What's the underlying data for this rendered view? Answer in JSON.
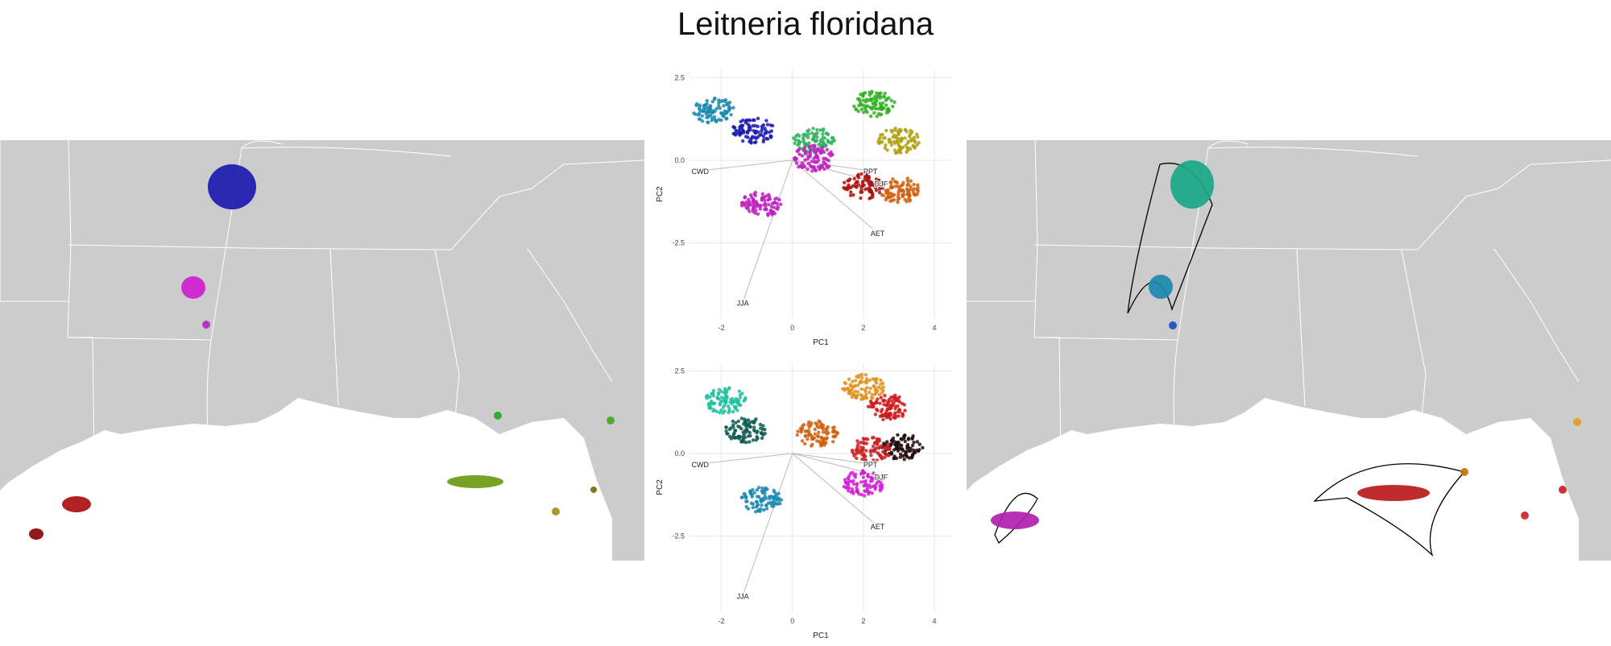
{
  "title": "Leitneria floridana",
  "colors": {
    "land": "#cccccc",
    "state_border": "#ffffff",
    "grid": "#e8e8e8",
    "loading_line": "#bbbbbb",
    "hull_line": "#000000"
  },
  "maps": [
    {
      "name": "left-map",
      "patches": [
        {
          "id": "missouri-cluster",
          "color": "#1a1ab0"
        },
        {
          "id": "arkansas-cluster",
          "color": "#d020d0"
        },
        {
          "id": "arkansas-dot",
          "color": "#b030c0"
        },
        {
          "id": "georgia-dot",
          "color": "#22aa22"
        },
        {
          "id": "florida-panhandle-cluster",
          "color": "#6a9a10"
        },
        {
          "id": "florida-dot",
          "color": "#a09010"
        },
        {
          "id": "florida-east-dot",
          "color": "#7a6a10"
        },
        {
          "id": "atlantic-dot",
          "color": "#44aa22"
        },
        {
          "id": "texas-cluster",
          "color": "#aa1010"
        },
        {
          "id": "texas-dot",
          "color": "#880808"
        }
      ]
    },
    {
      "name": "right-map",
      "patches": [
        {
          "id": "missouri-cluster",
          "color": "#1aa888"
        },
        {
          "id": "arkansas-cluster",
          "color": "#1a8ab0"
        },
        {
          "id": "arkansas-dot",
          "color": "#1a50c0"
        },
        {
          "id": "texas-cluster",
          "color": "#b020b0"
        },
        {
          "id": "florida-cluster",
          "color": "#bb1a1a"
        },
        {
          "id": "hull-vertex-1",
          "color": "#d07010"
        },
        {
          "id": "hull-vertex-2",
          "color": "#e0a020"
        },
        {
          "id": "hull-vertex-3",
          "color": "#cc2222"
        },
        {
          "id": "hull-vertex-4",
          "color": "#cc2222"
        }
      ]
    }
  ],
  "chart_data": [
    {
      "type": "scatter",
      "panel": "top",
      "xlabel": "PC1",
      "ylabel": "PC2",
      "xlim": [
        -2.9,
        4.5
      ],
      "ylim": [
        -4.8,
        2.75
      ],
      "xticks": [
        -2,
        0,
        2,
        4
      ],
      "yticks": [
        2.5,
        0.0,
        -2.5
      ],
      "xtick_labels": [
        "-2",
        "0",
        "2",
        "4"
      ],
      "ytick_labels": [
        "2.5",
        "0.0",
        "-2.5"
      ],
      "grid": true,
      "loadings": [
        {
          "label": "CWD",
          "x": -2.6,
          "y": -0.32
        },
        {
          "label": "PPT",
          "x": 2.2,
          "y": -0.32
        },
        {
          "label": "DJF",
          "x": 2.5,
          "y": -0.7
        },
        {
          "label": "AET",
          "x": 2.4,
          "y": -2.2
        },
        {
          "label": "JJA",
          "x": -1.4,
          "y": -4.3
        }
      ],
      "clusters": [
        {
          "name": "",
          "color": "#1a1ab0",
          "x": -1.1,
          "y": 0.9
        },
        {
          "name": "",
          "color": "#1a8ab0",
          "x": -2.2,
          "y": 1.5
        },
        {
          "name": "",
          "color": "#30b060",
          "x": 0.6,
          "y": 0.6
        },
        {
          "name": "",
          "color": "#30b020",
          "x": 2.3,
          "y": 1.7
        },
        {
          "name": "",
          "color": "#b0a010",
          "x": 3.0,
          "y": 0.6
        },
        {
          "name": "",
          "color": "#aa1010",
          "x": 2.0,
          "y": -0.8
        },
        {
          "name": "",
          "color": "#d06010",
          "x": 3.0,
          "y": -0.9
        },
        {
          "name": "",
          "color": "#c020c0",
          "x": -0.9,
          "y": -1.35
        },
        {
          "name": "",
          "color": "#c020c0",
          "x": 0.6,
          "y": 0.05
        }
      ]
    },
    {
      "type": "scatter",
      "panel": "bottom",
      "xlabel": "PC1",
      "ylabel": "PC2",
      "xlim": [
        -2.9,
        4.5
      ],
      "ylim": [
        -4.8,
        2.75
      ],
      "xticks": [
        -2,
        0,
        2,
        4
      ],
      "yticks": [
        2.5,
        0.0,
        -2.5
      ],
      "xtick_labels": [
        "-2",
        "0",
        "2",
        "4"
      ],
      "ytick_labels": [
        "2.5",
        "0.0",
        "-2.5"
      ],
      "grid": true,
      "loadings": [
        {
          "label": "CWD",
          "x": -2.6,
          "y": -0.32
        },
        {
          "label": "PPT",
          "x": 2.2,
          "y": -0.32
        },
        {
          "label": "DJF",
          "x": 2.5,
          "y": -0.7
        },
        {
          "label": "AET",
          "x": 2.4,
          "y": -2.2
        },
        {
          "label": "JJA",
          "x": -1.4,
          "y": -4.3
        }
      ],
      "clusters": [
        {
          "name": "",
          "color": "#20c0a0",
          "x": -1.9,
          "y": 1.6
        },
        {
          "name": "",
          "color": "#105a50",
          "x": -1.3,
          "y": 0.7
        },
        {
          "name": "",
          "color": "#d06010",
          "x": 0.7,
          "y": 0.6
        },
        {
          "name": "",
          "color": "#1a8ab0",
          "x": -0.9,
          "y": -1.4
        },
        {
          "name": "",
          "color": "#cc1a1a",
          "x": 2.7,
          "y": 1.4
        },
        {
          "name": "",
          "color": "#e09020",
          "x": 2.0,
          "y": 2.0
        },
        {
          "name": "",
          "color": "#200808",
          "x": 3.1,
          "y": 0.2
        },
        {
          "name": "",
          "color": "#cc2222",
          "x": 2.2,
          "y": 0.1
        },
        {
          "name": "",
          "color": "#d020d0",
          "x": 2.0,
          "y": -0.9
        }
      ]
    }
  ]
}
